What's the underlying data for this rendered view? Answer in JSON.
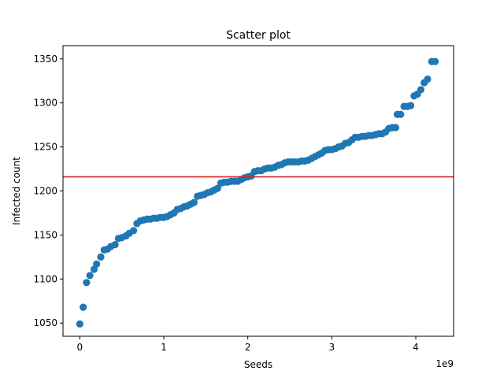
{
  "chart_data": {
    "type": "scatter",
    "title": "Scatter plot",
    "xlabel": "Seeds",
    "ylabel": "Infected count",
    "x_offset_label": "1e9",
    "xlim": [
      -0.2,
      4.45
    ],
    "ylim": [
      1035,
      1365
    ],
    "x_ticks": [
      0,
      1,
      2,
      3,
      4
    ],
    "x_tick_labels": [
      "0",
      "1",
      "2",
      "3",
      "4"
    ],
    "y_ticks": [
      1050,
      1100,
      1150,
      1200,
      1250,
      1300,
      1350
    ],
    "y_tick_labels": [
      "1050",
      "1100",
      "1150",
      "1200",
      "1250",
      "1300",
      "1350"
    ],
    "grid": false,
    "point_color": "#1f77b4",
    "reference_line": {
      "y": 1216,
      "color": "#d62728"
    },
    "points": [
      [
        0.0,
        1049
      ],
      [
        0.04,
        1068
      ],
      [
        0.08,
        1096
      ],
      [
        0.12,
        1104
      ],
      [
        0.17,
        1111
      ],
      [
        0.2,
        1117
      ],
      [
        0.25,
        1125
      ],
      [
        0.29,
        1133
      ],
      [
        0.33,
        1134
      ],
      [
        0.37,
        1137
      ],
      [
        0.42,
        1139
      ],
      [
        0.46,
        1146
      ],
      [
        0.5,
        1147
      ],
      [
        0.55,
        1149
      ],
      [
        0.59,
        1152
      ],
      [
        0.64,
        1155
      ],
      [
        0.68,
        1163
      ],
      [
        0.72,
        1166
      ],
      [
        0.76,
        1167
      ],
      [
        0.8,
        1168
      ],
      [
        0.84,
        1168
      ],
      [
        0.88,
        1169
      ],
      [
        0.92,
        1169
      ],
      [
        0.96,
        1170
      ],
      [
        1.0,
        1170
      ],
      [
        1.04,
        1171
      ],
      [
        1.08,
        1173
      ],
      [
        1.12,
        1175
      ],
      [
        1.16,
        1179
      ],
      [
        1.2,
        1180
      ],
      [
        1.24,
        1182
      ],
      [
        1.28,
        1183
      ],
      [
        1.32,
        1185
      ],
      [
        1.36,
        1187
      ],
      [
        1.4,
        1194
      ],
      [
        1.44,
        1195
      ],
      [
        1.48,
        1196
      ],
      [
        1.52,
        1198
      ],
      [
        1.56,
        1199
      ],
      [
        1.6,
        1201
      ],
      [
        1.64,
        1203
      ],
      [
        1.68,
        1209
      ],
      [
        1.72,
        1210
      ],
      [
        1.76,
        1210
      ],
      [
        1.8,
        1211
      ],
      [
        1.84,
        1211
      ],
      [
        1.88,
        1211
      ],
      [
        1.92,
        1213
      ],
      [
        1.96,
        1215
      ],
      [
        2.0,
        1216
      ],
      [
        2.04,
        1217
      ],
      [
        2.08,
        1222
      ],
      [
        2.12,
        1223
      ],
      [
        2.16,
        1223
      ],
      [
        2.2,
        1225
      ],
      [
        2.24,
        1226
      ],
      [
        2.28,
        1226
      ],
      [
        2.32,
        1227
      ],
      [
        2.36,
        1229
      ],
      [
        2.4,
        1230
      ],
      [
        2.44,
        1232
      ],
      [
        2.48,
        1233
      ],
      [
        2.52,
        1233
      ],
      [
        2.56,
        1233
      ],
      [
        2.6,
        1233
      ],
      [
        2.64,
        1234
      ],
      [
        2.68,
        1234
      ],
      [
        2.72,
        1235
      ],
      [
        2.76,
        1237
      ],
      [
        2.8,
        1239
      ],
      [
        2.84,
        1241
      ],
      [
        2.88,
        1243
      ],
      [
        2.92,
        1246
      ],
      [
        2.96,
        1247
      ],
      [
        3.0,
        1247
      ],
      [
        3.04,
        1248
      ],
      [
        3.08,
        1250
      ],
      [
        3.12,
        1251
      ],
      [
        3.16,
        1254
      ],
      [
        3.2,
        1255
      ],
      [
        3.24,
        1258
      ],
      [
        3.28,
        1261
      ],
      [
        3.32,
        1261
      ],
      [
        3.36,
        1262
      ],
      [
        3.4,
        1262
      ],
      [
        3.44,
        1263
      ],
      [
        3.48,
        1263
      ],
      [
        3.52,
        1264
      ],
      [
        3.56,
        1265
      ],
      [
        3.6,
        1265
      ],
      [
        3.64,
        1267
      ],
      [
        3.68,
        1271
      ],
      [
        3.72,
        1272
      ],
      [
        3.76,
        1272
      ],
      [
        3.78,
        1287
      ],
      [
        3.82,
        1287
      ],
      [
        3.86,
        1296
      ],
      [
        3.9,
        1296
      ],
      [
        3.94,
        1297
      ],
      [
        3.98,
        1308
      ],
      [
        4.02,
        1310
      ],
      [
        4.06,
        1315
      ],
      [
        4.1,
        1323
      ],
      [
        4.14,
        1327
      ],
      [
        4.19,
        1347
      ],
      [
        4.23,
        1347
      ]
    ]
  }
}
